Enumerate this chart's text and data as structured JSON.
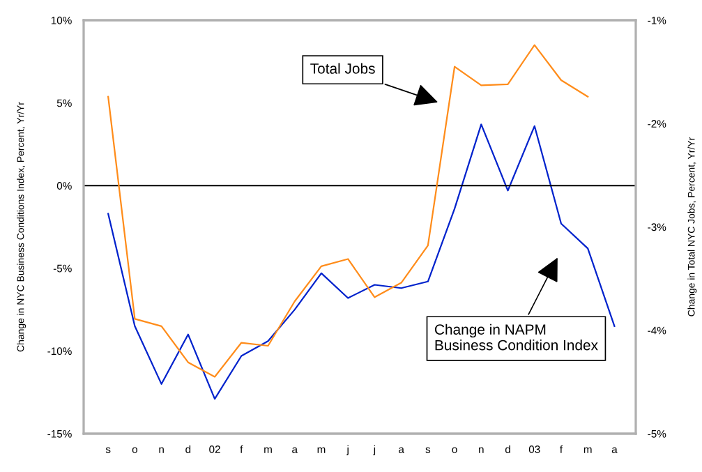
{
  "chart_data": {
    "type": "line",
    "ylabel": "Change in NYC Business Conditions Index, Percent, Yr/Yr",
    "y2label": "Change in Total NYC Jobs, Percent, Yr/Yr",
    "categories": [
      "s",
      "o",
      "n",
      "d",
      "02",
      "f",
      "m",
      "a",
      "m",
      "j",
      "j",
      "a",
      "s",
      "o",
      "n",
      "d",
      "03",
      "f",
      "m",
      "a"
    ],
    "series": [
      {
        "color": "#0022cc",
        "values": [
          -1.7,
          -8.5,
          -12.0,
          -9.0,
          -12.9,
          -10.3,
          -9.4,
          -7.5,
          -5.3,
          -6.8,
          -6.0,
          -6.2,
          -5.8,
          -1.4,
          3.7,
          -0.3,
          3.6,
          -2.3,
          -3.8,
          -8.5
        ]
      },
      {
        "color": "#ff8c1a",
        "axis": "y2",
        "values": [
          -1.74,
          -3.89,
          -3.96,
          -4.31,
          -4.45,
          -4.12,
          -4.15,
          -3.72,
          -3.38,
          -3.31,
          -3.68,
          -3.54,
          -3.18,
          -1.45,
          -1.63,
          -1.62,
          -1.24,
          -1.58,
          -1.74,
          null
        ]
      }
    ],
    "ylim": [
      -15,
      10
    ],
    "yticks": [
      {
        "value": -15,
        "label": "-15%"
      },
      {
        "value": -10,
        "label": "-10%"
      },
      {
        "value": -5,
        "label": "-5%"
      },
      {
        "value": 0,
        "label": "0%"
      },
      {
        "value": 5,
        "label": "5%"
      },
      {
        "value": 10,
        "label": "10%"
      }
    ],
    "y2lim": [
      -5,
      -1
    ],
    "y2ticks": [
      {
        "value": -5,
        "label": "-5%"
      },
      {
        "value": -4,
        "label": "-4%"
      },
      {
        "value": -3,
        "label": "-3%"
      },
      {
        "value": -2,
        "label": "-2%"
      },
      {
        "value": -1,
        "label": "-1%"
      }
    ],
    "ref_lines": [
      {
        "axis": "y",
        "value": 0,
        "color": "#000000"
      }
    ],
    "annotations": [
      "Total Jobs",
      "Change in NAPM\nBusiness Condition Index"
    ],
    "grid": false,
    "legend": false,
    "marker": "none",
    "line_style": "solid"
  }
}
